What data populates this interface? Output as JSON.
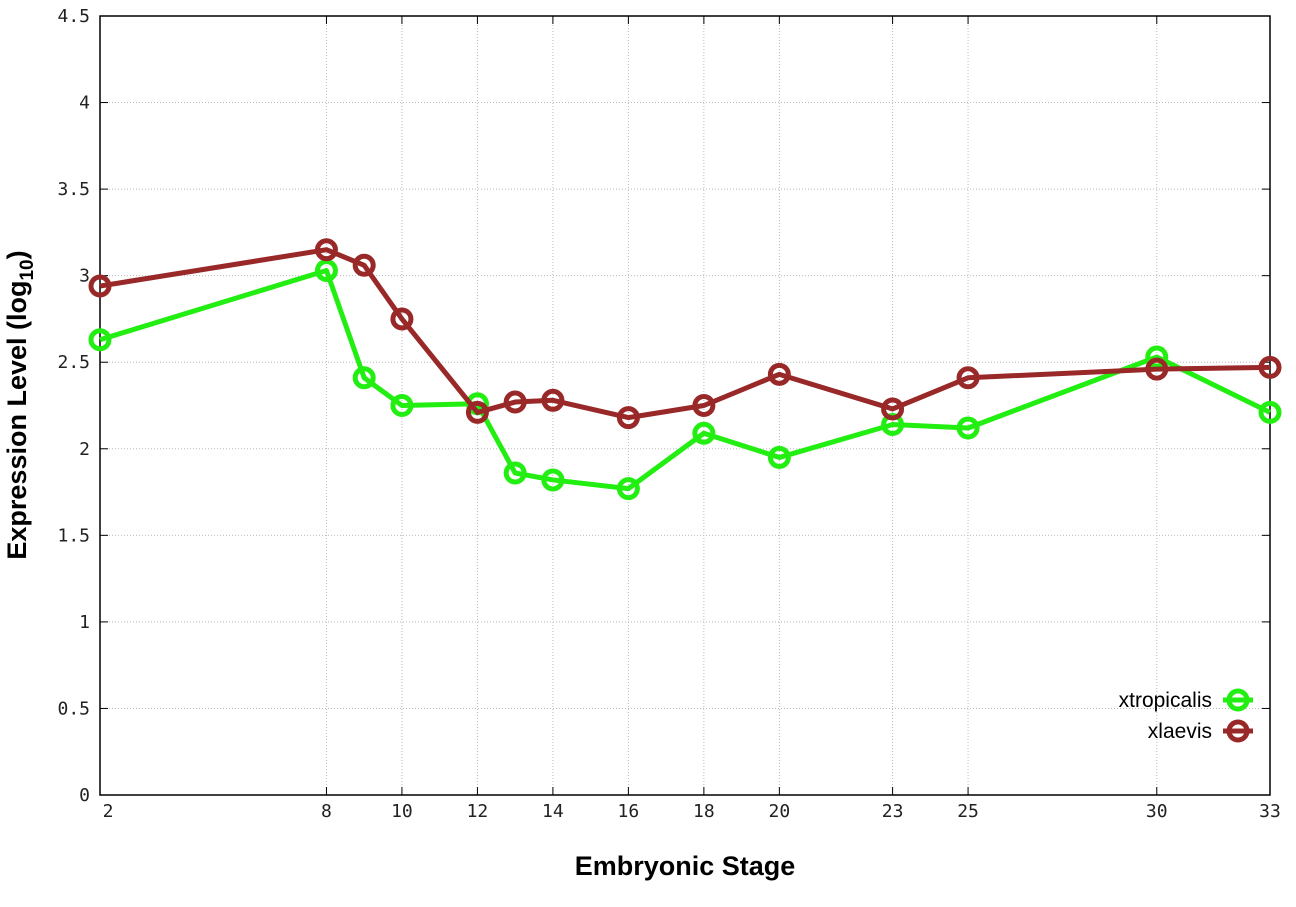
{
  "chart_data": {
    "type": "line",
    "title": "",
    "xlabel": "Embryonic Stage",
    "ylabel": "Expression Level (log",
    "ylabel_subscript": "10",
    "ylabel_suffix": ")",
    "xlim": [
      2,
      33
    ],
    "ylim": [
      0,
      4.5
    ],
    "grid": true,
    "legend_position": "bottom-right",
    "x_ticks": [
      2,
      8,
      10,
      12,
      14,
      16,
      18,
      20,
      23,
      25,
      30,
      33
    ],
    "y_ticks": [
      "0",
      "0.5",
      "1",
      "1.5",
      "2",
      "2.5",
      "3",
      "3.5",
      "4",
      "4.5"
    ],
    "x": [
      2,
      8,
      9,
      10,
      12,
      13,
      14,
      16,
      18,
      20,
      23,
      25,
      30,
      33
    ],
    "series": [
      {
        "name": "xtropicalis",
        "color": "#22ee11",
        "values": [
          2.63,
          3.03,
          2.41,
          2.25,
          2.26,
          1.86,
          1.82,
          1.77,
          2.09,
          1.95,
          2.14,
          2.12,
          2.53,
          2.21
        ]
      },
      {
        "name": "xlaevis",
        "color": "#992828",
        "values": [
          2.94,
          3.15,
          3.06,
          2.75,
          2.21,
          2.27,
          2.28,
          2.18,
          2.25,
          2.43,
          2.23,
          2.41,
          2.46,
          2.47
        ]
      }
    ]
  }
}
